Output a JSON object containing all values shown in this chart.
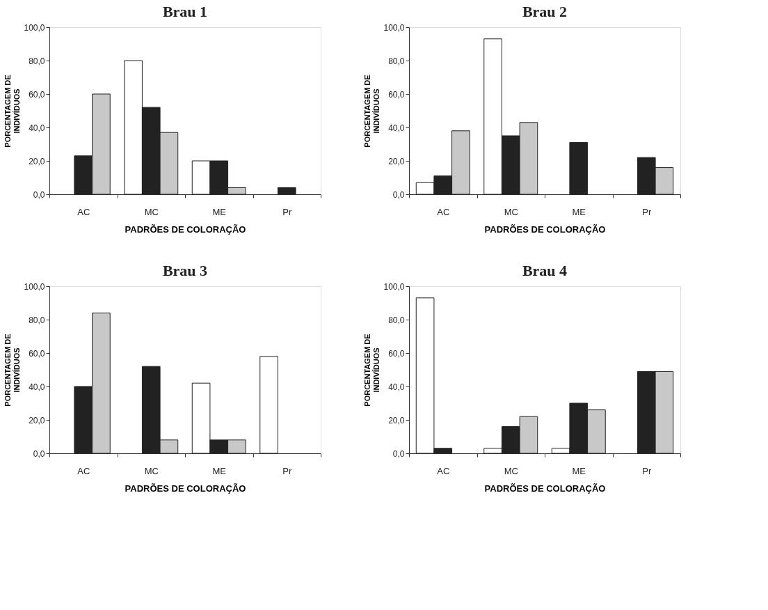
{
  "chart_data": [
    {
      "type": "bar",
      "title": "Brau 1",
      "xlabel": "PADRÕES DE COLORAÇÃO",
      "ylabel": "PORCENTAGEM DE\nINDIVÍDUOS",
      "categories": [
        "AC",
        "MC",
        "ME",
        "Pr"
      ],
      "series": [
        {
          "color": "#ffffff",
          "values": [
            null,
            80,
            20,
            null
          ]
        },
        {
          "color": "#222222",
          "values": [
            23,
            52,
            20,
            4
          ]
        },
        {
          "color": "#c8c8c8",
          "values": [
            60,
            37,
            4,
            null
          ]
        }
      ],
      "ylim": [
        0,
        100
      ],
      "yticks": [
        {
          "value": 0,
          "label": "0,0"
        },
        {
          "value": 20,
          "label": "20,0"
        },
        {
          "value": 40,
          "label": "40,0"
        },
        {
          "value": 60,
          "label": "60,0"
        },
        {
          "value": 80,
          "label": "80,0"
        },
        {
          "value": 100,
          "label": "100,0"
        }
      ],
      "grid": false,
      "legend": false
    },
    {
      "type": "bar",
      "title": "Brau 2",
      "xlabel": "PADRÕES DE COLORAÇÃO",
      "ylabel": "PORCENTAGEM DE\nINDIVÍDUOS",
      "categories": [
        "AC",
        "MC",
        "ME",
        "Pr"
      ],
      "series": [
        {
          "color": "#ffffff",
          "values": [
            7,
            93,
            null,
            null
          ]
        },
        {
          "color": "#222222",
          "values": [
            11,
            35,
            31,
            22
          ]
        },
        {
          "color": "#c8c8c8",
          "values": [
            38,
            43,
            null,
            16
          ]
        }
      ],
      "ylim": [
        0,
        100
      ],
      "yticks": [
        {
          "value": 0,
          "label": "0,0"
        },
        {
          "value": 20,
          "label": "20,0"
        },
        {
          "value": 40,
          "label": "40,0"
        },
        {
          "value": 60,
          "label": "60,0"
        },
        {
          "value": 80,
          "label": "80,0"
        },
        {
          "value": 100,
          "label": "100,0"
        }
      ],
      "grid": false,
      "legend": false
    },
    {
      "type": "bar",
      "title": "Brau 3",
      "xlabel": "PADRÕES DE COLORAÇÃO",
      "ylabel": "PORCENTAGEM DE\nINDIVÍDUOS",
      "categories": [
        "AC",
        "MC",
        "ME",
        "Pr"
      ],
      "series": [
        {
          "color": "#ffffff",
          "values": [
            null,
            null,
            42,
            58
          ]
        },
        {
          "color": "#222222",
          "values": [
            40,
            52,
            8,
            null
          ]
        },
        {
          "color": "#c8c8c8",
          "values": [
            84,
            8,
            8,
            null
          ]
        }
      ],
      "ylim": [
        0,
        100
      ],
      "yticks": [
        {
          "value": 0,
          "label": "0,0"
        },
        {
          "value": 20,
          "label": "20,0"
        },
        {
          "value": 40,
          "label": "40,0"
        },
        {
          "value": 60,
          "label": "60,0"
        },
        {
          "value": 80,
          "label": "80,0"
        },
        {
          "value": 100,
          "label": "100,0"
        }
      ],
      "grid": false,
      "legend": false
    },
    {
      "type": "bar",
      "title": "Brau 4",
      "xlabel": "PADRÕES DE COLORAÇÃO",
      "ylabel": "PORCENTAGEM DE\nINDIVÍDUOS",
      "categories": [
        "AC",
        "MC",
        "ME",
        "Pr"
      ],
      "series": [
        {
          "color": "#ffffff",
          "values": [
            93,
            3,
            3,
            null
          ]
        },
        {
          "color": "#222222",
          "values": [
            3,
            16,
            30,
            49
          ]
        },
        {
          "color": "#c8c8c8",
          "values": [
            null,
            22,
            26,
            49
          ]
        }
      ],
      "ylim": [
        0,
        100
      ],
      "yticks": [
        {
          "value": 0,
          "label": "0,0"
        },
        {
          "value": 20,
          "label": "20,0"
        },
        {
          "value": 40,
          "label": "40,0"
        },
        {
          "value": 60,
          "label": "60,0"
        },
        {
          "value": 80,
          "label": "80,0"
        },
        {
          "value": 100,
          "label": "100,0"
        }
      ],
      "grid": false,
      "legend": false
    }
  ]
}
